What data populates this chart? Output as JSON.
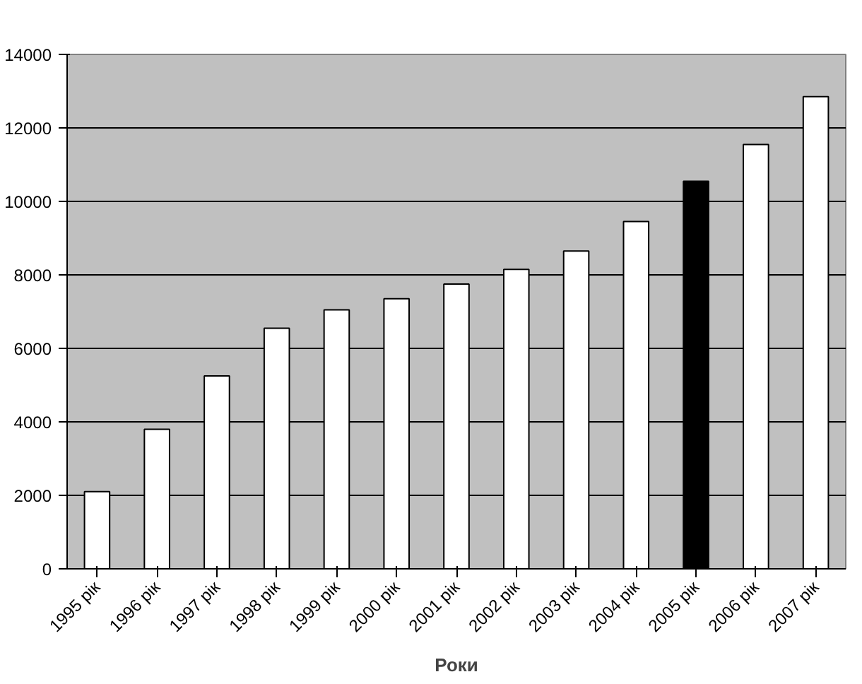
{
  "chart_data": {
    "type": "bar",
    "xlabel": "Роки",
    "categories": [
      "1995 рік",
      "1996 рік",
      "1997 рік",
      "1998 рік",
      "1999 рік",
      "2000 рік",
      "2001 рік",
      "2002 рік",
      "2003 рік",
      "2004 рік",
      "2005 рік",
      "2006 рік",
      "2007 рік"
    ],
    "values": [
      2100,
      3800,
      5250,
      6550,
      7050,
      7350,
      7750,
      8150,
      8650,
      9450,
      10550,
      11550,
      12850
    ],
    "colors": [
      "#ffffff",
      "#ffffff",
      "#ffffff",
      "#ffffff",
      "#ffffff",
      "#ffffff",
      "#ffffff",
      "#ffffff",
      "#ffffff",
      "#ffffff",
      "#000000",
      "#ffffff",
      "#ffffff"
    ],
    "ylim": [
      0,
      14000
    ],
    "yticks": [
      0,
      2000,
      4000,
      6000,
      8000,
      10000,
      12000,
      14000
    ],
    "grid": "y"
  }
}
